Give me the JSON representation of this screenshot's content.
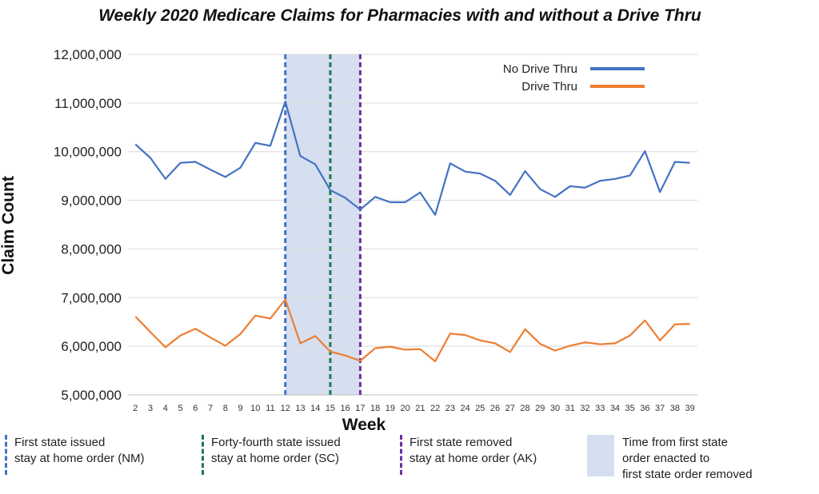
{
  "chart_data": {
    "type": "line",
    "title": "Weekly 2020 Medicare Claims for Pharmacies with and without a Drive Thru",
    "xlabel": "Week",
    "ylabel": "Claim Count",
    "x": [
      2,
      3,
      4,
      5,
      6,
      7,
      8,
      9,
      10,
      11,
      12,
      13,
      14,
      15,
      16,
      17,
      18,
      19,
      20,
      21,
      22,
      23,
      24,
      25,
      26,
      27,
      28,
      29,
      30,
      31,
      32,
      33,
      34,
      35,
      36,
      37,
      38,
      39
    ],
    "y_tick_labels": [
      "5,000,000",
      "6,000,000",
      "7,000,000",
      "8,000,000",
      "9,000,000",
      "10,000,000",
      "11,000,000",
      "12,000,000"
    ],
    "ylim": [
      5000000,
      12000000
    ],
    "grid": "horizontal",
    "legend_position": "top-right",
    "series": [
      {
        "name": "No Drive Thru",
        "color": "#4472c4",
        "values": [
          10150000,
          9870000,
          9440000,
          9770000,
          9790000,
          9630000,
          9480000,
          9670000,
          10180000,
          10120000,
          11030000,
          9910000,
          9740000,
          9210000,
          9050000,
          8810000,
          9070000,
          8960000,
          8960000,
          9160000,
          8700000,
          9760000,
          9590000,
          9550000,
          9400000,
          9110000,
          9600000,
          9230000,
          9070000,
          9290000,
          9260000,
          9400000,
          9440000,
          9510000,
          10010000,
          9170000,
          9790000,
          9770000
        ]
      },
      {
        "name": "Drive Thru",
        "color": "#ed7d31",
        "values": [
          6610000,
          6290000,
          5980000,
          6220000,
          6360000,
          6180000,
          6010000,
          6250000,
          6630000,
          6570000,
          6960000,
          6060000,
          6210000,
          5890000,
          5810000,
          5700000,
          5960000,
          5990000,
          5930000,
          5940000,
          5690000,
          6260000,
          6230000,
          6120000,
          6060000,
          5880000,
          6350000,
          6050000,
          5910000,
          6010000,
          6080000,
          6040000,
          6060000,
          6220000,
          6530000,
          6120000,
          6450000,
          6460000
        ]
      }
    ],
    "reference_lines": [
      {
        "week": 12,
        "color": "#4472c4"
      },
      {
        "week": 15,
        "color": "#1e7b4a"
      },
      {
        "week": 17,
        "color": "#7030a0"
      }
    ],
    "shaded_region": {
      "from_week": 12,
      "to_week": 17,
      "color": "#d6dff0"
    }
  },
  "notes": {
    "nm": {
      "line1": "First state issued",
      "line2": "stay at home order (NM)",
      "color": "#4472c4"
    },
    "sc": {
      "line1": "Forty-fourth state issued",
      "line2": "stay at home order (SC)",
      "color": "#1e7b4a"
    },
    "ak": {
      "line1": "First state removed",
      "line2": "stay at home order (AK)",
      "color": "#7030a0"
    },
    "range": {
      "line1": "Time from first state",
      "line2": "order enacted to",
      "line3": "first state order removed",
      "color": "#d6dff0"
    }
  }
}
